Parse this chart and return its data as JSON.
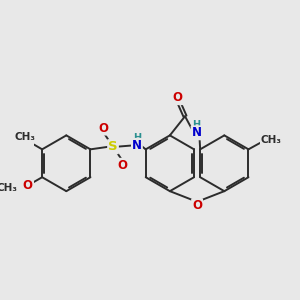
{
  "bg_color": "#e8e8e8",
  "bond_color": "#2c2c2c",
  "bond_width": 1.4,
  "atom_colors": {
    "N": "#0000cc",
    "O": "#cc0000",
    "S": "#cccc00",
    "H": "#2a9090",
    "C": "#2c2c2c"
  },
  "font_size": 8.5,
  "fig_size": [
    3.0,
    3.0
  ],
  "dpi": 100,
  "xlim": [
    -1.0,
    9.0
  ],
  "ylim": [
    -1.5,
    5.5
  ]
}
